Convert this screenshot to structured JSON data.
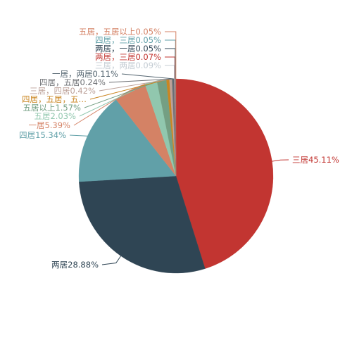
{
  "chart_data": {
    "type": "pie",
    "series": [
      {
        "label": "三居45.11%",
        "value": 45.11,
        "color": "#c23531"
      },
      {
        "label": "两居28.88%",
        "value": 28.88,
        "color": "#2f4554"
      },
      {
        "label": "四居15.34%",
        "value": 15.34,
        "color": "#61a0a8"
      },
      {
        "label": "一居5.39%",
        "value": 5.39,
        "color": "#d48265"
      },
      {
        "label": "五居2.03%",
        "value": 2.03,
        "color": "#91c7ae"
      },
      {
        "label": "五居以上1.57%",
        "value": 1.57,
        "color": "#749f83"
      },
      {
        "label": "四居，五居，五…",
        "value": 0.5,
        "color": "#ca8622"
      },
      {
        "label": "三居，四居0.42%",
        "value": 0.42,
        "color": "#bda29a"
      },
      {
        "label": "四居，五居0.24%",
        "value": 0.24,
        "color": "#6e7074"
      },
      {
        "label": "一居，两居0.11%",
        "value": 0.11,
        "color": "#546570"
      },
      {
        "label": "三居，两居0.09%",
        "value": 0.09,
        "color": "#c4ccd3"
      },
      {
        "label": "两居，三居0.07%",
        "value": 0.07,
        "color": "#c23531"
      },
      {
        "label": "两居，一居0.05%",
        "value": 0.05,
        "color": "#2f4554"
      },
      {
        "label": "四居，三居0.05%",
        "value": 0.05,
        "color": "#61a0a8"
      },
      {
        "label": "五居，五居以上0.05%",
        "value": 0.05,
        "color": "#d48265"
      }
    ]
  }
}
